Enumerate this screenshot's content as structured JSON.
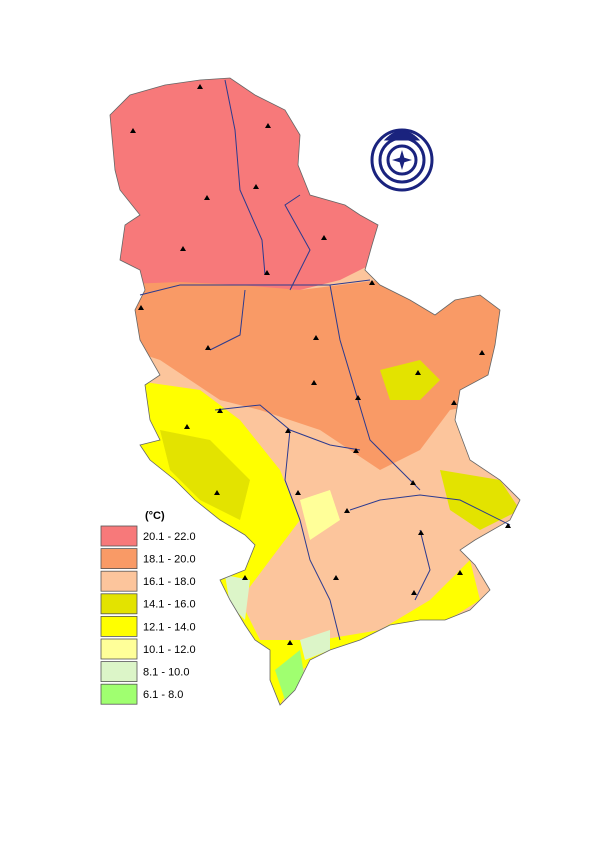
{
  "legend": {
    "title": "(°C)",
    "items": [
      {
        "label": "20.1 - 22.0",
        "color": "#f7797a"
      },
      {
        "label": "18.1 - 20.0",
        "color": "#f99a66"
      },
      {
        "label": "16.1 - 18.0",
        "color": "#fcc59c"
      },
      {
        "label": "14.1 - 16.0",
        "color": "#e3e300"
      },
      {
        "label": "12.1 - 14.0",
        "color": "#ffff00"
      },
      {
        "label": "10.1 - 12.0",
        "color": "#ffff99"
      },
      {
        "label": "8.1 - 10.0",
        "color": "#dcf5c8"
      },
      {
        "label": "6.1 - 8.0",
        "color": "#a0ff70"
      }
    ]
  }
}
